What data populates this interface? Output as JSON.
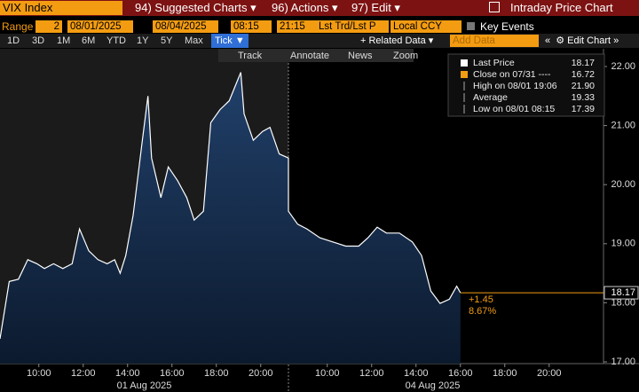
{
  "toolbar": {
    "security": "VIX Index",
    "menus": [
      "94) Suggested Charts",
      "96) Actions",
      "97) Edit"
    ],
    "title": "Intraday Price Chart"
  },
  "range": {
    "label": "Range",
    "period": "2",
    "start_date": "08/01/2025",
    "end_date": "08/04/2025",
    "start_time": "08:15",
    "end_time": "21:15",
    "field": "Lst Trd/Lst P",
    "currency": "Local CCY",
    "key_events": "Key Events"
  },
  "periods": [
    "1D",
    "3D",
    "1M",
    "6M",
    "YTD",
    "1Y",
    "5Y",
    "Max"
  ],
  "selected_period": "Tick",
  "related_data": "+ Related Data",
  "add_data": "Add Data",
  "edit_chart": "Edit Chart",
  "chart_tools": [
    "Track",
    "Annotate",
    "News",
    "Zoom"
  ],
  "chart_data": {
    "type": "area",
    "series": [
      {
        "name": "Last Price",
        "color": "#ffffff",
        "fill": "#1d3a5c",
        "x": [
          "2025-08-01 08:15",
          "2025-08-01 08:40",
          "2025-08-01 09:05",
          "2025-08-01 09:30",
          "2025-08-01 09:55",
          "2025-08-01 10:15",
          "2025-08-01 10:40",
          "2025-08-01 11:05",
          "2025-08-01 11:30",
          "2025-08-01 11:50",
          "2025-08-01 12:05",
          "2025-08-01 12:15",
          "2025-08-01 12:40",
          "2025-08-01 13:05",
          "2025-08-01 13:25",
          "2025-08-01 13:40",
          "2025-08-01 13:55",
          "2025-08-01 14:15",
          "2025-08-01 14:40",
          "2025-08-01 14:55",
          "2025-08-01 15:05",
          "2025-08-01 15:30",
          "2025-08-01 15:50",
          "2025-08-01 16:15",
          "2025-08-01 16:40",
          "2025-08-01 17:00",
          "2025-08-01 17:25",
          "2025-08-01 17:45",
          "2025-08-01 18:10",
          "2025-08-01 18:35",
          "2025-08-01 19:06",
          "2025-08-01 19:15",
          "2025-08-01 19:40",
          "2025-08-01 20:05",
          "2025-08-01 20:25",
          "2025-08-01 20:50",
          "2025-08-01 21:15",
          "2025-08-04 08:15",
          "2025-08-04 08:40",
          "2025-08-04 09:05",
          "2025-08-04 09:40",
          "2025-08-04 10:15",
          "2025-08-04 10:50",
          "2025-08-04 11:25",
          "2025-08-04 11:50",
          "2025-08-04 12:15",
          "2025-08-04 12:40",
          "2025-08-04 13:15",
          "2025-08-04 13:50",
          "2025-08-04 14:15",
          "2025-08-04 14:40",
          "2025-08-04 15:05",
          "2025-08-04 15:30",
          "2025-08-04 15:50",
          "2025-08-04 16:00"
        ],
        "values": [
          17.39,
          18.36,
          18.4,
          18.73,
          18.66,
          18.58,
          18.66,
          18.58,
          18.66,
          19.25,
          19.03,
          18.88,
          18.73,
          18.66,
          18.73,
          18.5,
          18.8,
          19.48,
          20.75,
          21.5,
          20.45,
          19.78,
          20.3,
          20.07,
          19.78,
          19.4,
          19.55,
          21.05,
          21.27,
          21.42,
          21.9,
          21.2,
          20.75,
          20.9,
          20.97,
          20.52,
          20.45,
          19.55,
          19.33,
          19.25,
          19.1,
          19.03,
          18.96,
          18.96,
          19.1,
          19.28,
          19.18,
          19.18,
          19.03,
          18.8,
          18.2,
          17.99,
          18.06,
          18.28,
          18.17
        ]
      }
    ],
    "ylim": [
      16.97,
      22.3
    ],
    "yticks": [
      {
        "value": 17,
        "label": "17.00"
      },
      {
        "value": 18,
        "label": "18.00"
      },
      {
        "value": 19,
        "label": "19.00"
      },
      {
        "value": 20,
        "label": "20.00"
      },
      {
        "value": 21,
        "label": "21.00"
      },
      {
        "value": 22,
        "label": "22.00"
      }
    ],
    "xticks": [
      {
        "value": "2025-08-01 10:00",
        "label": "10:00"
      },
      {
        "value": "2025-08-01 12:00",
        "label": "12:00"
      },
      {
        "value": "2025-08-01 14:00",
        "label": "14:00"
      },
      {
        "value": "2025-08-01 16:00",
        "label": "16:00"
      },
      {
        "value": "2025-08-01 18:00",
        "label": "18:00"
      },
      {
        "value": "2025-08-01 20:00",
        "label": "20:00"
      },
      {
        "value": "2025-08-04 10:00",
        "label": "10:00"
      },
      {
        "value": "2025-08-04 12:00",
        "label": "12:00"
      },
      {
        "value": "2025-08-04 14:00",
        "label": "14:00"
      },
      {
        "value": "2025-08-04 16:00",
        "label": "16:00"
      },
      {
        "value": "2025-08-04 18:00",
        "label": "18:00"
      },
      {
        "value": "2025-08-04 20:00",
        "label": "20:00"
      }
    ],
    "date_labels": [
      {
        "value": "2025-08-01",
        "label": "01 Aug 2025"
      },
      {
        "value": "2025-08-04",
        "label": "04 Aug 2025"
      }
    ],
    "last_price": 18.17,
    "last_price_color": "#f39c12",
    "change": {
      "value": 1.45,
      "label": "+1.45"
    },
    "change_pct": {
      "value": 8.67,
      "label": "8.67%"
    },
    "legend": [
      {
        "label": "Last Price",
        "value": 18.17
      },
      {
        "label": "Close on 07/31 ----",
        "value": 16.72
      },
      {
        "label": "High on 08/01 19:06",
        "value": {
          "value": 21.9,
          "label": "21.90"
        }
      },
      {
        "label": "Average",
        "value": 19.33
      },
      {
        "label": "Low on 08/01 08:15",
        "value": 17.39
      }
    ]
  }
}
